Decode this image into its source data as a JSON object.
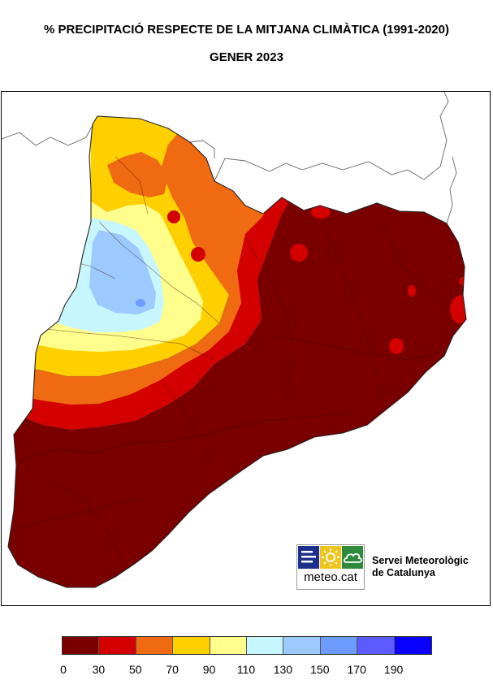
{
  "title": {
    "line1": "% PRECIPITACIÓ RESPECTE DE LA MITJANA CLIMÀTICA (1991-2020)",
    "line2": "GENER 2023"
  },
  "logo": {
    "text": "meteo.cat",
    "agency_line1": "Servei Meteorològic",
    "agency_line2": "de Catalunya"
  },
  "legend": {
    "bins": [
      {
        "color": "#7a0000"
      },
      {
        "color": "#d40000"
      },
      {
        "color": "#ef6a10"
      },
      {
        "color": "#ffd000"
      },
      {
        "color": "#fffe8c"
      },
      {
        "color": "#c8f6ff"
      },
      {
        "color": "#9ccaff"
      },
      {
        "color": "#6e9bff"
      },
      {
        "color": "#5b5bff"
      },
      {
        "color": "#0a00ff"
      }
    ],
    "tick_labels": [
      "0",
      "30",
      "50",
      "70",
      "90",
      "110",
      "130",
      "150",
      "170",
      "190"
    ]
  }
}
